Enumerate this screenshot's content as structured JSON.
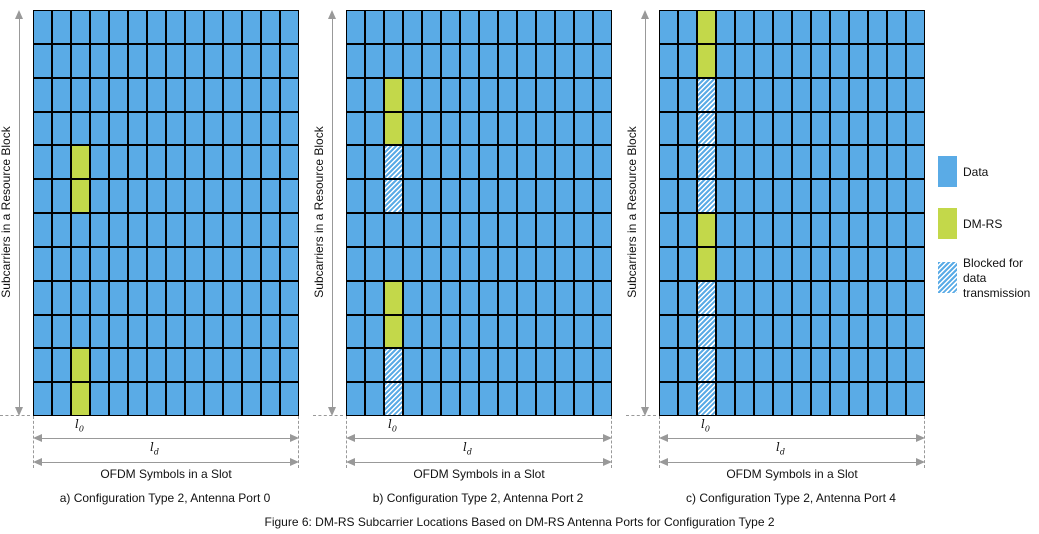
{
  "colors": {
    "data": "#5aabe6",
    "dmrs": "#c3d84a",
    "grid_line": "#000000",
    "arrow": "#999999"
  },
  "grid": {
    "columns": 14,
    "rows": 12,
    "dmrs_column_index": 2
  },
  "ylabel": "Subcarriers in a Resource Block",
  "xlabel": "OFDM Symbols in a Slot",
  "l0_label": "l",
  "l0_sub": "0",
  "ld_label": "l",
  "ld_sub": "d",
  "panels": [
    {
      "caption": "a) Configuration Type 2, Antenna Port 0",
      "column_states": [
        "data",
        "data",
        "data",
        "data",
        "dmrs",
        "dmrs",
        "data",
        "data",
        "data",
        "data",
        "dmrs",
        "dmrs"
      ]
    },
    {
      "caption": "b) Configuration Type 2, Antenna Port 2",
      "column_states": [
        "data",
        "data",
        "dmrs",
        "dmrs",
        "blocked",
        "blocked",
        "data",
        "data",
        "dmrs",
        "dmrs",
        "blocked",
        "blocked"
      ]
    },
    {
      "caption": "c) Configuration Type 2, Antenna Port 4",
      "column_states": [
        "dmrs",
        "dmrs",
        "blocked",
        "blocked",
        "blocked",
        "blocked",
        "dmrs",
        "dmrs",
        "blocked",
        "blocked",
        "blocked",
        "blocked"
      ]
    }
  ],
  "legend": [
    {
      "key": "data",
      "label": "Data"
    },
    {
      "key": "dmrs",
      "label": "DM-RS"
    },
    {
      "key": "blocked",
      "label": "Blocked for data transmission"
    }
  ],
  "figure_caption": "Figure 6: DM-RS Subcarrier Locations Based on DM-RS Antenna Ports for Configuration Type 2"
}
